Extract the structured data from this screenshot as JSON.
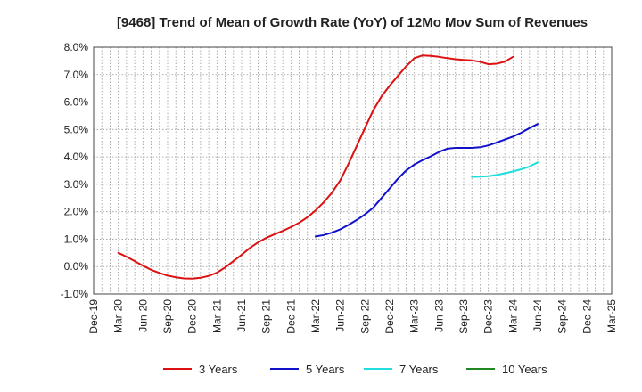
{
  "chart_data": {
    "type": "line",
    "title": "[9468]  Trend of Mean of Growth Rate (YoY) of 12Mo Mov Sum of Revenues",
    "xlabel": "",
    "ylabel": "",
    "x_ticks": [
      "Dec-19",
      "Mar-20",
      "Jun-20",
      "Sep-20",
      "Dec-20",
      "Mar-21",
      "Jun-21",
      "Sep-21",
      "Dec-21",
      "Mar-22",
      "Jun-22",
      "Sep-22",
      "Dec-22",
      "Mar-23",
      "Jun-23",
      "Sep-23",
      "Dec-23",
      "Mar-24",
      "Jun-24",
      "Sep-24",
      "Dec-24",
      "Mar-25"
    ],
    "y_ticks": [
      "-1.0%",
      "0.0%",
      "1.0%",
      "2.0%",
      "3.0%",
      "4.0%",
      "5.0%",
      "6.0%",
      "7.0%",
      "8.0%"
    ],
    "ylim": [
      -1.0,
      8.0
    ],
    "x_months_range": [
      0,
      63
    ],
    "grid": true,
    "series": [
      {
        "name": "3 Years",
        "color": "#dd1111",
        "points": [
          [
            3,
            0.5
          ],
          [
            4,
            0.36
          ],
          [
            5,
            0.2
          ],
          [
            6,
            0.03
          ],
          [
            7,
            -0.12
          ],
          [
            8,
            -0.23
          ],
          [
            9,
            -0.33
          ],
          [
            10,
            -0.39
          ],
          [
            11,
            -0.43
          ],
          [
            12,
            -0.44
          ],
          [
            13,
            -0.41
          ],
          [
            14,
            -0.34
          ],
          [
            15,
            -0.22
          ],
          [
            16,
            -0.03
          ],
          [
            17,
            0.2
          ],
          [
            18,
            0.43
          ],
          [
            19,
            0.68
          ],
          [
            20,
            0.88
          ],
          [
            21,
            1.05
          ],
          [
            22,
            1.18
          ],
          [
            23,
            1.3
          ],
          [
            24,
            1.44
          ],
          [
            25,
            1.6
          ],
          [
            26,
            1.8
          ],
          [
            27,
            2.05
          ],
          [
            28,
            2.35
          ],
          [
            29,
            2.7
          ],
          [
            30,
            3.15
          ],
          [
            31,
            3.75
          ],
          [
            32,
            4.4
          ],
          [
            33,
            5.05
          ],
          [
            34,
            5.7
          ],
          [
            35,
            6.2
          ],
          [
            36,
            6.6
          ],
          [
            37,
            6.95
          ],
          [
            38,
            7.3
          ],
          [
            39,
            7.6
          ],
          [
            40,
            7.7
          ],
          [
            41,
            7.68
          ],
          [
            42,
            7.65
          ],
          [
            43,
            7.6
          ],
          [
            44,
            7.56
          ],
          [
            45,
            7.54
          ],
          [
            46,
            7.52
          ],
          [
            47,
            7.47
          ],
          [
            48,
            7.38
          ],
          [
            49,
            7.4
          ],
          [
            50,
            7.47
          ],
          [
            51,
            7.65
          ]
        ]
      },
      {
        "name": "5 Years",
        "color": "#1111cc",
        "points": [
          [
            27,
            1.1
          ],
          [
            28,
            1.15
          ],
          [
            29,
            1.24
          ],
          [
            30,
            1.36
          ],
          [
            31,
            1.52
          ],
          [
            32,
            1.7
          ],
          [
            33,
            1.9
          ],
          [
            34,
            2.15
          ],
          [
            35,
            2.5
          ],
          [
            36,
            2.85
          ],
          [
            37,
            3.2
          ],
          [
            38,
            3.5
          ],
          [
            39,
            3.72
          ],
          [
            40,
            3.88
          ],
          [
            41,
            4.02
          ],
          [
            42,
            4.18
          ],
          [
            43,
            4.3
          ],
          [
            44,
            4.33
          ],
          [
            45,
            4.33
          ],
          [
            46,
            4.33
          ],
          [
            47,
            4.35
          ],
          [
            48,
            4.42
          ],
          [
            49,
            4.52
          ],
          [
            50,
            4.63
          ],
          [
            51,
            4.74
          ],
          [
            52,
            4.88
          ],
          [
            53,
            5.05
          ],
          [
            54,
            5.2
          ]
        ]
      },
      {
        "name": "7 Years",
        "color": "#22dddd",
        "points": [
          [
            46,
            3.27
          ],
          [
            47,
            3.28
          ],
          [
            48,
            3.3
          ],
          [
            49,
            3.34
          ],
          [
            50,
            3.4
          ],
          [
            51,
            3.47
          ],
          [
            52,
            3.55
          ],
          [
            53,
            3.65
          ],
          [
            54,
            3.8
          ]
        ]
      },
      {
        "name": "10 Years",
        "color": "#228822",
        "points": []
      }
    ]
  }
}
